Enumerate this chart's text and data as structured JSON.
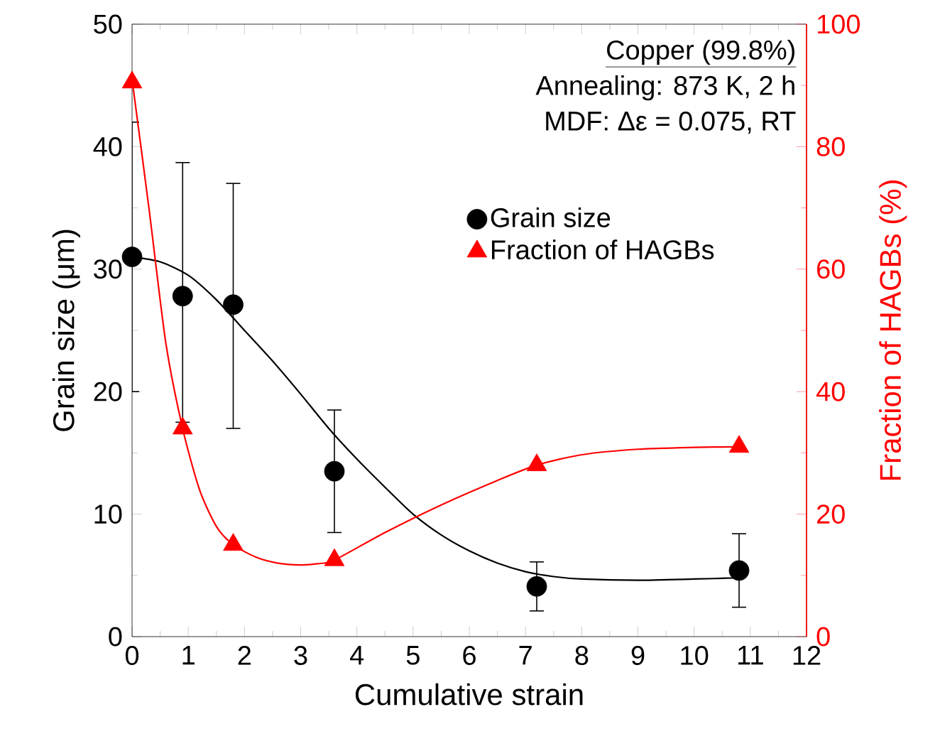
{
  "chart_data": {
    "type": "scatter",
    "xlabel": "Cumulative strain",
    "ylabel": "Grain size (μm)",
    "y2label": "Fraction of HAGBs (%)",
    "x": [
      0,
      0.9,
      1.8,
      3.6,
      7.2,
      10.8
    ],
    "series": [
      {
        "name": "Grain size",
        "color": "#000000",
        "marker": "circle",
        "values": [
          31,
          27.8,
          27.1,
          13.5,
          4.1,
          5.4
        ],
        "errors": [
          [
            20,
            42
          ],
          [
            17.5,
            38.7
          ],
          [
            17,
            37
          ],
          [
            8.5,
            18.5
          ],
          [
            2.1,
            6.1
          ],
          [
            2.4,
            8.4
          ]
        ]
      },
      {
        "name": "Fraction of HAGBs",
        "color": "#ff0000",
        "marker": "triangle",
        "axis": "y2",
        "values": [
          90.5,
          34,
          15,
          12.5,
          28,
          31
        ]
      },
      {
        "type": "line",
        "color": "#000000",
        "x": [
          0,
          0.5,
          1,
          1.5,
          2,
          2.5,
          3,
          3.5,
          4,
          4.5,
          5,
          5.5,
          6,
          6.5,
          7,
          7.5,
          8,
          9,
          10,
          10.8
        ],
        "values": [
          31,
          30.6,
          29.5,
          27.5,
          25,
          22.5,
          19.8,
          17,
          14.5,
          12.2,
          10,
          8.3,
          7,
          6,
          5.3,
          4.9,
          4.7,
          4.6,
          4.7,
          4.8
        ]
      },
      {
        "type": "line",
        "color": "#ff0000",
        "axis": "y2",
        "x": [
          0,
          0.3,
          0.6,
          0.9,
          1.2,
          1.5,
          1.8,
          2.2,
          2.6,
          3,
          3.3,
          3.6,
          4.5,
          5.5,
          6.5,
          7.2,
          8,
          9,
          10,
          10.8
        ],
        "values": [
          91,
          70,
          48,
          34,
          24,
          18,
          15,
          13,
          12,
          11.7,
          11.9,
          12.5,
          17,
          21.5,
          25.5,
          28,
          29.7,
          30.6,
          30.9,
          31
        ]
      }
    ],
    "xlim": [
      0,
      12
    ],
    "xticks": [
      0,
      1,
      2,
      3,
      4,
      5,
      6,
      7,
      8,
      9,
      10,
      11,
      12
    ],
    "ylim": [
      0,
      50
    ],
    "yticks": [
      0,
      10,
      20,
      30,
      40,
      50
    ],
    "y2lim": [
      0,
      100
    ],
    "y2ticks": [
      0,
      20,
      40,
      60,
      80,
      100
    ],
    "legend": "right",
    "annotations": [
      "Copper (99.8%)",
      "Annealing: 873 K, 2 h",
      "MDF: Δε = 0.075, RT"
    ]
  }
}
